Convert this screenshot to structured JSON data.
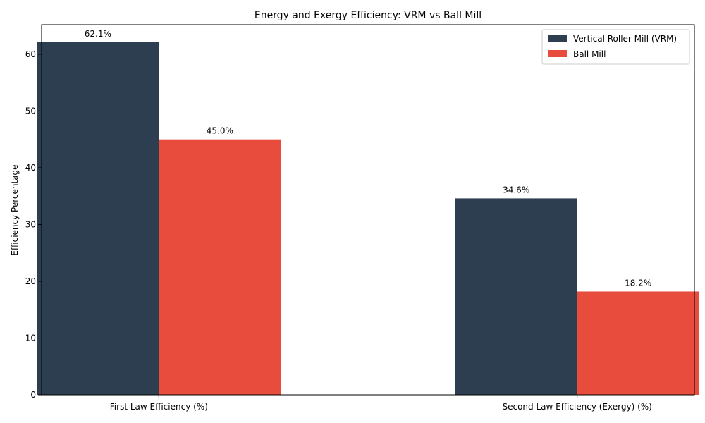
{
  "chart_data": {
    "type": "bar",
    "title": "Energy and Exergy Efficiency: VRM vs Ball Mill",
    "xlabel": "",
    "ylabel": "Efficiency Percentage",
    "categories": [
      "First Law Efficiency (%)",
      "Second Law Efficiency (Exergy) (%)"
    ],
    "series": [
      {
        "name": "Vertical Roller Mill (VRM)",
        "values": [
          62.1,
          34.6
        ],
        "color": "#2c3e50",
        "labels": [
          "62.1%",
          "34.6%"
        ]
      },
      {
        "name": "Ball Mill",
        "values": [
          45.0,
          18.2
        ],
        "color": "#e74c3c",
        "labels": [
          "45.0%",
          "18.2%"
        ]
      }
    ],
    "ylim": [
      0,
      65.205
    ],
    "yticks": [
      0,
      10,
      20,
      30,
      40,
      50,
      60
    ],
    "ytick_labels": [
      "0",
      "10",
      "20",
      "30",
      "40",
      "50",
      "60"
    ],
    "grid": false,
    "legend_position": "top-right"
  }
}
